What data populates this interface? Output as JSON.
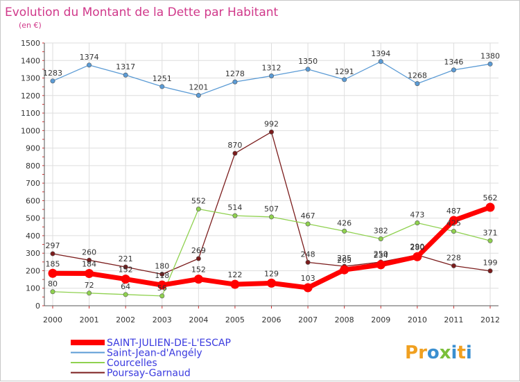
{
  "chart_data": {
    "type": "line",
    "title": "Evolution du Montant de la Dette par Habitant",
    "subtitle": "(en €)",
    "xlabel": "",
    "ylabel": "",
    "categories": [
      "2000",
      "2001",
      "2002",
      "2003",
      "2004",
      "2005",
      "2006",
      "2007",
      "2008",
      "2009",
      "2010",
      "2011",
      "2012"
    ],
    "ylim": [
      0,
      1500
    ],
    "yticks": [
      0,
      100,
      200,
      300,
      400,
      500,
      600,
      700,
      800,
      900,
      1000,
      1100,
      1200,
      1300,
      1400,
      1500
    ],
    "grid": true,
    "legend_position": "bottom-left",
    "series": [
      {
        "name": "SAINT-JULIEN-DE-L'ESCAP",
        "color": "#ff0000",
        "values": [
          185,
          184,
          152,
          118,
          152,
          122,
          129,
          103,
          205,
          234,
          280,
          487,
          562
        ],
        "labels": [
          "185",
          "184",
          "152",
          "118",
          "152",
          "122",
          "129",
          "103",
          "205",
          "234",
          "280",
          "487",
          "562"
        ]
      },
      {
        "name": "Saint-Jean-d'Angély",
        "color": "#5b9bd5",
        "values": [
          1283,
          1374,
          1317,
          1251,
          1201,
          1278,
          1312,
          1350,
          1291,
          1394,
          1268,
          1346,
          1380
        ],
        "labels": [
          "1283",
          "1374",
          "1317",
          "1251",
          "1201",
          "1278",
          "1312",
          "1350",
          "1291",
          "1394",
          "1268",
          "1346",
          "1380"
        ]
      },
      {
        "name": "Courcelles",
        "color": "#8fd14f",
        "values": [
          80,
          72,
          64,
          56,
          552,
          514,
          507,
          467,
          426,
          382,
          473,
          425,
          371
        ],
        "labels": [
          "80",
          "72",
          "64",
          "56",
          "552",
          "514",
          "507",
          "467",
          "426",
          "382",
          "473",
          "425",
          "371"
        ]
      },
      {
        "name": "Poursay-Garnaud",
        "color": "#7b1c1c",
        "values": [
          297,
          260,
          221,
          180,
          269,
          870,
          992,
          248,
          225,
          250,
          290,
          228,
          199
        ],
        "labels": [
          "297",
          "260",
          "221",
          "180",
          "269",
          "870",
          "992",
          "248",
          "225",
          "250",
          "290",
          "228",
          "199"
        ]
      }
    ]
  },
  "logo": {
    "text": "Proxiti"
  }
}
